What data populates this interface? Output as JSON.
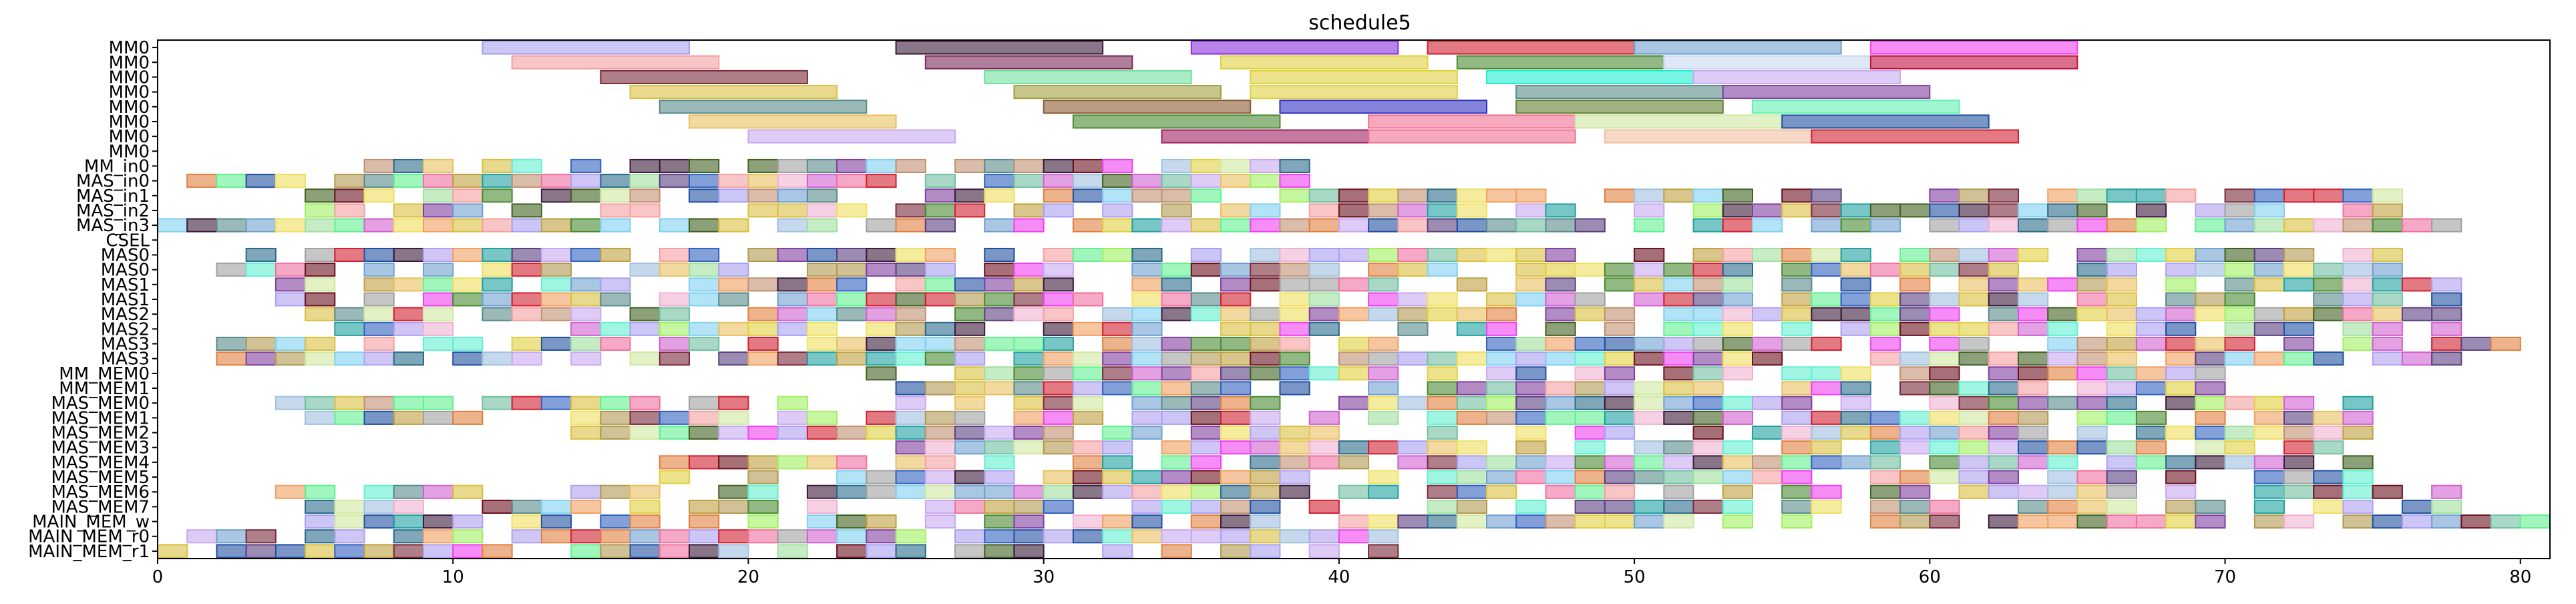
{
  "chart_data": {
    "type": "gantt",
    "title": "schedule5",
    "xlabel": "",
    "ylabel": "",
    "xlim": [
      0,
      81
    ],
    "xticks": [
      "0",
      "10",
      "20",
      "30",
      "40",
      "50",
      "60",
      "70",
      "80"
    ],
    "grid": false,
    "legend": "none",
    "rows": [
      "MM0",
      "MM0",
      "MM0",
      "MM0",
      "MM0",
      "MM0",
      "MM0",
      "MM0",
      "MM_in0",
      "MAS_in0",
      "MAS_in1",
      "MAS_in2",
      "MAS_in3",
      "CSEL",
      "MAS0",
      "MAS0",
      "MAS1",
      "MAS1",
      "MAS2",
      "MAS2",
      "MAS3",
      "MAS3",
      "MM_MEM0",
      "MM_MEM1",
      "MAS_MEM0",
      "MAS_MEM1",
      "MAS_MEM2",
      "MAS_MEM3",
      "MAS_MEM4",
      "MAS_MEM5",
      "MAS_MEM6",
      "MAS_MEM7",
      "MAIN_MEM_w",
      "MAIN_MEM_r0",
      "MAIN_MEM_r1"
    ],
    "seed": 5,
    "palette": [
      "#a8a0f0",
      "#f4a0a0",
      "#7a2a3a",
      "#e0d040",
      "#d8c040",
      "#5a8a8a",
      "#e8c060",
      "#c8a8f0",
      "#3a1a3a",
      "#a0e0a0",
      "#d060d0",
      "#b09a50",
      "#6a1020",
      "#5a4080",
      "#70c0a0",
      "#2a6a8a",
      "#d02030",
      "#4a8a30",
      "#f0a060",
      "#2050a0",
      "#60f0d0",
      "#f070a0",
      "#a0f060",
      "#f040f0",
      "#c0a040",
      "#3060c0",
      "#70a0d0",
      "#e08040",
      "#b0a0f0",
      "#f0e060",
      "#80d0f0",
      "#60f090",
      "#c09070",
      "#a0c0e0",
      "#f0b0d0",
      "#406020",
      "#8040a0",
      "#d0e8a0",
      "#a0a0a0",
      "#20a0a0"
    ],
    "tasks": [
      {
        "row": 0,
        "start": 11,
        "end": 18,
        "color": "#a8a0f0"
      },
      {
        "row": 0,
        "start": 25,
        "end": 32,
        "color": "#3a1a3a"
      },
      {
        "row": 0,
        "start": 35,
        "end": 42,
        "color": "#8a30e0"
      },
      {
        "row": 0,
        "start": 43,
        "end": 50,
        "color": "#d02030"
      },
      {
        "row": 0,
        "start": 50,
        "end": 57,
        "color": "#70a0d0"
      },
      {
        "row": 0,
        "start": 58,
        "end": 65,
        "color": "#f040f0"
      },
      {
        "row": 1,
        "start": 12,
        "end": 19,
        "color": "#f4a0a0"
      },
      {
        "row": 1,
        "start": 26,
        "end": 33,
        "color": "#7a2a5a"
      },
      {
        "row": 1,
        "start": 36,
        "end": 43,
        "color": "#e0d040"
      },
      {
        "row": 1,
        "start": 44,
        "end": 51,
        "color": "#4a8a30"
      },
      {
        "row": 1,
        "start": 51,
        "end": 58,
        "color": "#c8d8f0"
      },
      {
        "row": 1,
        "start": 58,
        "end": 65,
        "color": "#c01040"
      },
      {
        "row": 2,
        "start": 15,
        "end": 22,
        "color": "#7a2a3a"
      },
      {
        "row": 2,
        "start": 28,
        "end": 35,
        "color": "#70e0a0"
      },
      {
        "row": 2,
        "start": 37,
        "end": 44,
        "color": "#e0d040"
      },
      {
        "row": 2,
        "start": 45,
        "end": 52,
        "color": "#20f0d0"
      },
      {
        "row": 2,
        "start": 52,
        "end": 59,
        "color": "#c8a8f0"
      },
      {
        "row": 3,
        "start": 16,
        "end": 23,
        "color": "#d8c040"
      },
      {
        "row": 3,
        "start": 29,
        "end": 36,
        "color": "#a0a040"
      },
      {
        "row": 3,
        "start": 37,
        "end": 44,
        "color": "#e0d040"
      },
      {
        "row": 3,
        "start": 46,
        "end": 53,
        "color": "#5a8a8a"
      },
      {
        "row": 3,
        "start": 53,
        "end": 60,
        "color": "#8040a0"
      },
      {
        "row": 4,
        "start": 17,
        "end": 24,
        "color": "#5a8a8a"
      },
      {
        "row": 4,
        "start": 30,
        "end": 37,
        "color": "#8a5a30"
      },
      {
        "row": 4,
        "start": 38,
        "end": 45,
        "color": "#3030c0"
      },
      {
        "row": 4,
        "start": 46,
        "end": 53,
        "color": "#608030"
      },
      {
        "row": 4,
        "start": 54,
        "end": 61,
        "color": "#60f0b0"
      },
      {
        "row": 5,
        "start": 18,
        "end": 25,
        "color": "#e8c060"
      },
      {
        "row": 5,
        "start": 31,
        "end": 38,
        "color": "#4a8a30"
      },
      {
        "row": 5,
        "start": 41,
        "end": 48,
        "color": "#f07090"
      },
      {
        "row": 5,
        "start": 48,
        "end": 55,
        "color": "#d0e8a0"
      },
      {
        "row": 5,
        "start": 55,
        "end": 62,
        "color": "#2050a0"
      },
      {
        "row": 6,
        "start": 20,
        "end": 27,
        "color": "#c8a8f0"
      },
      {
        "row": 6,
        "start": 34,
        "end": 41,
        "color": "#a02060"
      },
      {
        "row": 6,
        "start": 41,
        "end": 48,
        "color": "#f07090"
      },
      {
        "row": 6,
        "start": 49,
        "end": 56,
        "color": "#f0c0a0"
      },
      {
        "row": 6,
        "start": 56,
        "end": 63,
        "color": "#d02030"
      }
    ],
    "dense_rows": {
      "MM_in0": [
        6,
        39
      ],
      "MAS_in0": [
        1,
        39
      ],
      "MAS_in1": [
        4,
        76
      ],
      "MAS_in2": [
        4,
        76
      ],
      "MAS_in3": [
        0,
        78
      ],
      "MAS0": [
        2,
        76
      ],
      "MAS1": [
        4,
        78
      ],
      "MAS2": [
        5,
        78
      ],
      "MAS3": [
        1,
        80
      ],
      "MM_MEM0": [
        24,
        70
      ],
      "MM_MEM1": [
        24,
        70
      ],
      "MAS_MEM0": [
        4,
        75
      ],
      "MAS_MEM1": [
        4,
        75
      ],
      "MAS_MEM2": [
        14,
        75
      ],
      "MAS_MEM3": [
        25,
        75
      ],
      "MAS_MEM4": [
        16,
        75
      ],
      "MAS_MEM5": [
        15,
        75
      ],
      "MAS_MEM6": [
        4,
        78
      ],
      "MAS_MEM7": [
        4,
        78
      ],
      "MAIN_MEM_w": [
        4,
        81
      ],
      "MAIN_MEM_r0": [
        0,
        42
      ],
      "MAIN_MEM_r1": [
        0,
        42
      ]
    }
  }
}
